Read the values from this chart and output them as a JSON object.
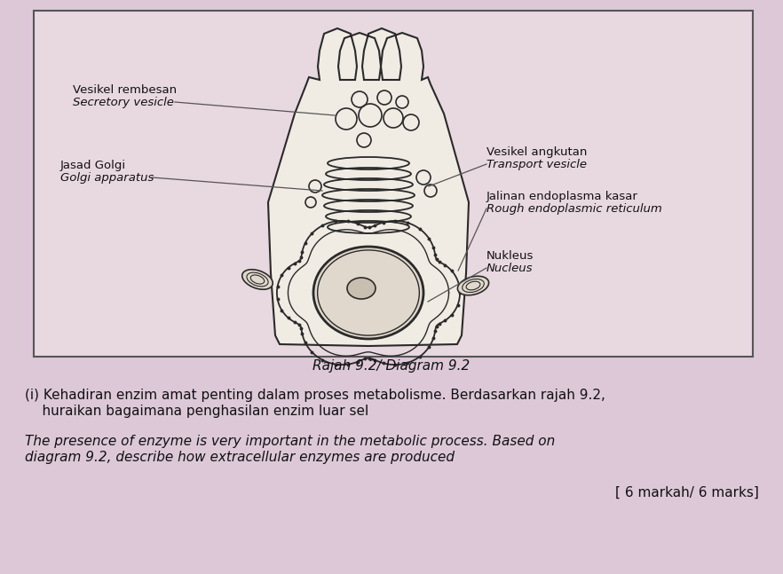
{
  "bg_color": "#ddc8d8",
  "box_facecolor": "#e8d8e0",
  "box_edge_color": "#555555",
  "diagram_title": "Rajah 9.2/ Diagram 9.2",
  "labels": {
    "secretory_vesicle_ms": "Vesikel rembesan",
    "secretory_vesicle_en": "Secretory vesicle",
    "golgi_ms": "Jasad Golgi",
    "golgi_en": "Golgi apparatus",
    "transport_vesicle_ms": "Vesikel angkutan",
    "transport_vesicle_en": "Transport vesicle",
    "rer_ms": "Jalinan endoplasma kasar",
    "rer_en": "Rough endoplasmic reticulum",
    "nucleus_ms": "Nukleus",
    "nucleus_en": "Nucleus"
  },
  "question_ms_line1": "(i) Kehadiran enzim amat penting dalam proses metabolisme. Berdasarkan rajah 9.2,",
  "question_ms_line2": "    huraikan bagaimana penghasilan enzim luar sel",
  "question_en_line1": "The presence of enzyme is very important in the metabolic process. Based on",
  "question_en_line2": "diagram 9.2, describe how extracellular enzymes are produced",
  "marks": "[ 6 markah/ 6 marks]",
  "draw_color": "#2a2a2a",
  "line_color": "#555555",
  "cell_fill": "#f0ece4",
  "nucleus_fill": "#e0d8cc",
  "nucleolus_fill": "#c8bfb0"
}
